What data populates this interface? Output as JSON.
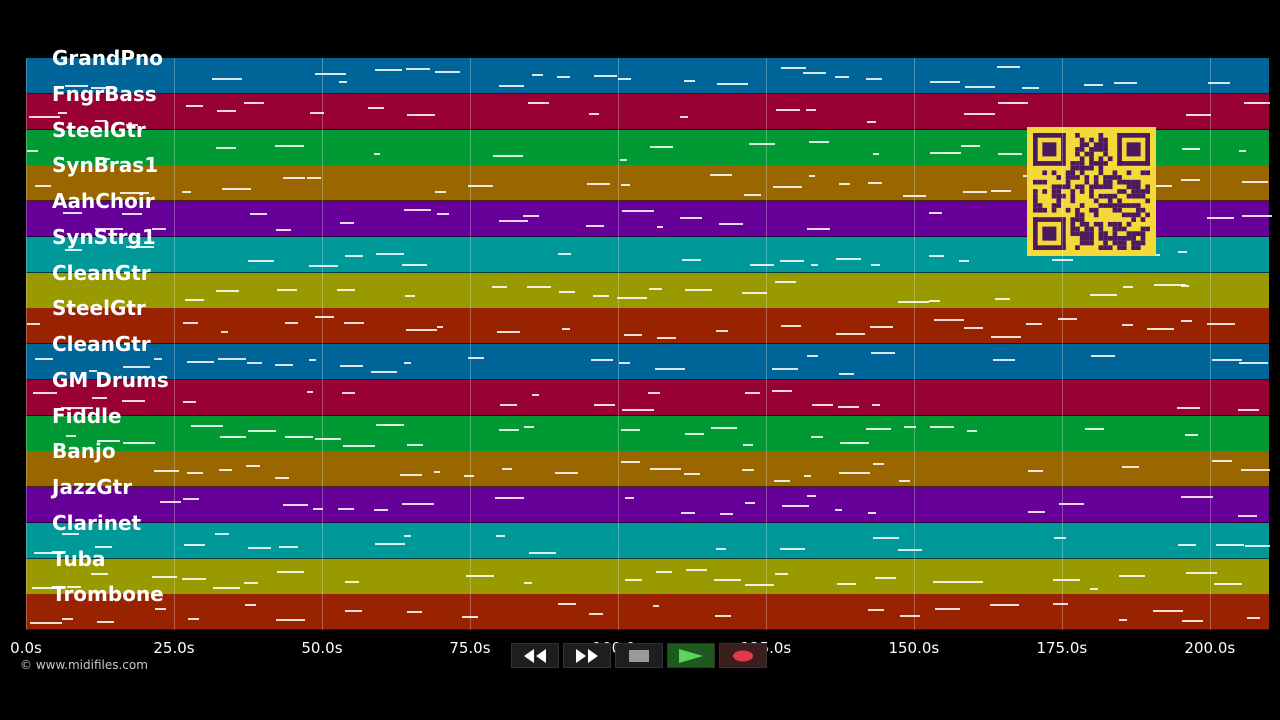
{
  "colors": {
    "track_palette": [
      "#006699",
      "#990033",
      "#009933",
      "#996600",
      "#660099",
      "#009999",
      "#999900",
      "#992200"
    ],
    "qr_fg": "#4b1a5e",
    "qr_bg": "#f5d83a"
  },
  "tracks": [
    {
      "label": "GrandPno",
      "color": "#006699"
    },
    {
      "label": "FngrBass",
      "color": "#990033"
    },
    {
      "label": "SteelGtr",
      "color": "#009933"
    },
    {
      "label": "SynBras1",
      "color": "#996600"
    },
    {
      "label": "AahChoir",
      "color": "#660099"
    },
    {
      "label": "SynStrg1",
      "color": "#009999"
    },
    {
      "label": "CleanGtr",
      "color": "#999900"
    },
    {
      "label": "SteelGtr",
      "color": "#992200"
    },
    {
      "label": "CleanGtr",
      "color": "#006699"
    },
    {
      "label": "GM Drums",
      "color": "#990033"
    },
    {
      "label": "Fiddle",
      "color": "#009933"
    },
    {
      "label": "Banjo",
      "color": "#996600"
    },
    {
      "label": "JazzGtr",
      "color": "#660099"
    },
    {
      "label": "Clarinet",
      "color": "#009999"
    },
    {
      "label": "Tuba",
      "color": "#999900"
    },
    {
      "label": "Trombone",
      "color": "#992200"
    }
  ],
  "timeline": {
    "ticks": [
      "0.0s",
      "25.0s",
      "50.0s",
      "75.0s",
      "100.0s",
      "125.0s",
      "150.0s",
      "175.0s",
      "200.0s"
    ],
    "tick_values": [
      0,
      25,
      50,
      75,
      100,
      125,
      150,
      175,
      200
    ],
    "range_seconds": [
      0,
      210
    ]
  },
  "copyright": "© www.midifiles.com",
  "transport": {
    "rewind_icon": "rewind-icon",
    "forward_icon": "fast-forward-icon",
    "stop_icon": "stop-icon",
    "play_icon": "play-icon",
    "record_icon": "record-icon"
  }
}
